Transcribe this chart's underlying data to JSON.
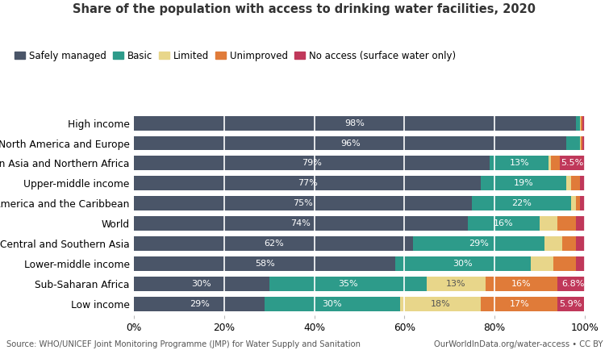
{
  "title": "Share of the population with access to drinking water facilities, 2020",
  "categories": [
    "Low income",
    "Sub-Saharan Africa",
    "Lower-middle income",
    "Central and Southern Asia",
    "World",
    "Latin America and the Caribbean",
    "Upper-middle income",
    "Western Asia and Northern Africa",
    "North America and Europe",
    "High income"
  ],
  "segments": {
    "Safely managed": [
      29,
      30,
      58,
      62,
      74,
      75,
      77,
      79,
      96,
      98
    ],
    "Basic": [
      30,
      35,
      30,
      29,
      16,
      22,
      19,
      13,
      3,
      1
    ],
    "Limited": [
      18,
      13,
      5,
      4,
      4,
      1,
      1,
      0.5,
      0.2,
      0.2
    ],
    "Unimproved": [
      17,
      16,
      5,
      3,
      4,
      1,
      2,
      2,
      0.3,
      0.3
    ],
    "No access (surface water only)": [
      5.9,
      6.8,
      2,
      2,
      2,
      1,
      1,
      5.5,
      0.5,
      0.5
    ]
  },
  "segment_labels": {
    "Safely managed": [
      "29%",
      "30%",
      "58%",
      "62%",
      "74%",
      "75%",
      "77%",
      "79%",
      "96%",
      "98%"
    ],
    "Basic": [
      "30%",
      "35%",
      "30%",
      "29%",
      "16%",
      "22%",
      "19%",
      "13%",
      "",
      ""
    ],
    "Limited": [
      "18%",
      "13%",
      "",
      "",
      "",
      "",
      "",
      "",
      "",
      ""
    ],
    "Unimproved": [
      "17%",
      "16%",
      "",
      "",
      "",
      "",
      "",
      "",
      "",
      ""
    ],
    "No access (surface water only)": [
      "5.9%",
      "6.8%",
      "",
      "",
      "",
      "",
      "",
      "5.5%",
      "",
      ""
    ]
  },
  "colors": {
    "Safely managed": "#4a5568",
    "Basic": "#2d9b8a",
    "Limited": "#e8d68a",
    "Unimproved": "#e07b39",
    "No access (surface water only)": "#c0385a"
  },
  "xtick_labels": [
    "0%",
    "20%",
    "40%",
    "60%",
    "80%",
    "100%"
  ],
  "source_left": "Source: WHO/UNICEF Joint Monitoring Programme (JMP) for Water Supply and Sanitation",
  "source_right": "OurWorldInData.org/water-access • CC BY",
  "background_color": "#ffffff",
  "bar_height": 0.72,
  "label_fontsize": 8.0,
  "legend_fontsize": 8.5,
  "title_fontsize": 10.5
}
